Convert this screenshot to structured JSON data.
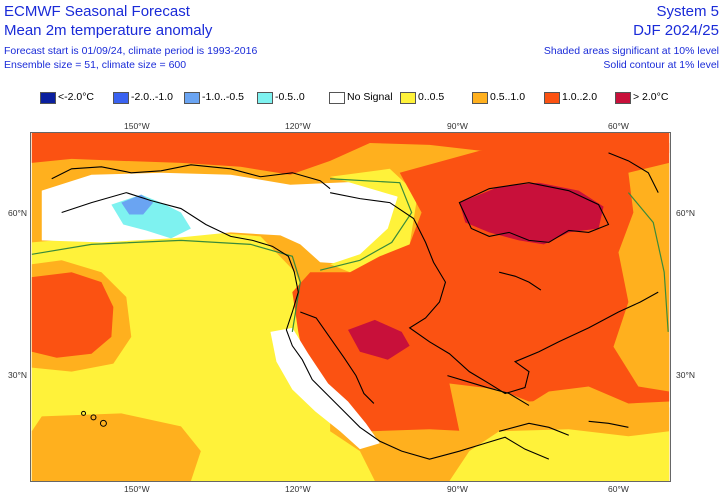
{
  "header": {
    "title_left": "ECMWF Seasonal Forecast",
    "subtitle_left": "Mean 2m temperature anomaly",
    "meta_left_1": "Forecast start is 01/09/24, climate period is 1993-2016",
    "meta_left_2": "Ensemble size = 51, climate size = 600",
    "title_right": "System 5",
    "subtitle_right": "DJF 2024/25",
    "meta_right_1": "Shaded areas significant at 10% level",
    "meta_right_2": "Solid contour at 1% level"
  },
  "legend": [
    {
      "label": "<-2.0°C",
      "color": "#0a1f9e"
    },
    {
      "label": "-2.0..-1.0",
      "color": "#3a62f0"
    },
    {
      "label": "-1.0..-0.5",
      "color": "#6aa4f2"
    },
    {
      "label": "-0.5..0",
      "color": "#7ef2f0"
    },
    {
      "label": "No Signal",
      "color": "#ffffff"
    },
    {
      "label": "0..0.5",
      "color": "#fff23a"
    },
    {
      "label": "0.5..1.0",
      "color": "#ffb01e"
    },
    {
      "label": "1.0..2.0",
      "color": "#fb5212"
    },
    {
      "label": "> 2.0°C",
      "color": "#c8103a"
    }
  ],
  "axes": {
    "lon_ticks": [
      "150°W",
      "120°W",
      "90°W",
      "60°W"
    ],
    "lat_ticks": [
      "60°N",
      "30°N"
    ]
  },
  "map": {
    "region": "North America and North-East Pacific",
    "variable": "2m temperature anomaly",
    "colors": {
      "land_outline": "#000000",
      "significance_contour": "#3a8a3a",
      "frame": "#666666"
    }
  }
}
